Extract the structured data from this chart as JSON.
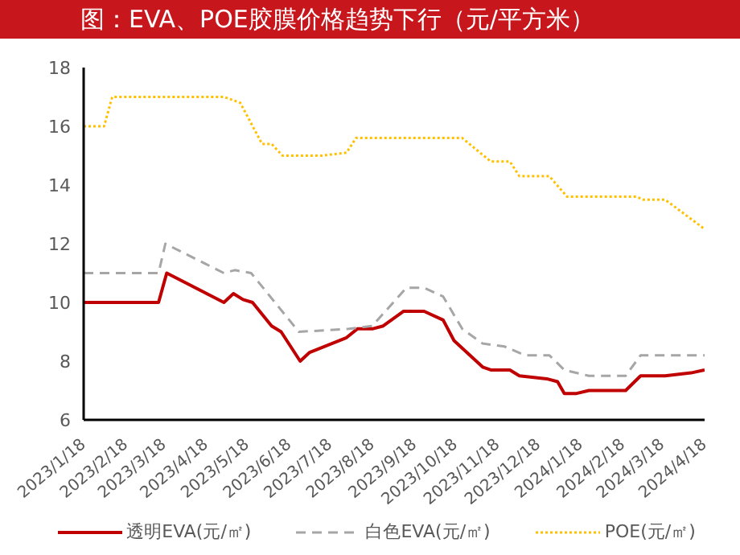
{
  "chart_data": {
    "type": "line",
    "title": "图：EVA、POE胶膜价格趋势下行（元/平方米）",
    "xlim": [
      "2023-01-18",
      "2024-04-18"
    ],
    "xticks": [
      {
        "value": "2023-01-18",
        "label": "2023/1/18"
      },
      {
        "value": "2023-02-18",
        "label": "2023/2/18"
      },
      {
        "value": "2023-03-18",
        "label": "2023/3/18"
      },
      {
        "value": "2023-04-18",
        "label": "2023/4/18"
      },
      {
        "value": "2023-05-18",
        "label": "2023/5/18"
      },
      {
        "value": "2023-06-18",
        "label": "2023/6/18"
      },
      {
        "value": "2023-07-18",
        "label": "2023/7/18"
      },
      {
        "value": "2023-08-18",
        "label": "2023/8/18"
      },
      {
        "value": "2023-09-18",
        "label": "2023/9/18"
      },
      {
        "value": "2023-10-18",
        "label": "2023/10/18"
      },
      {
        "value": "2023-11-18",
        "label": "2023/11/18"
      },
      {
        "value": "2023-12-18",
        "label": "2023/12/18"
      },
      {
        "value": "2024-01-18",
        "label": "2024/1/18"
      },
      {
        "value": "2024-02-18",
        "label": "2024/2/18"
      },
      {
        "value": "2024-03-18",
        "label": "2024/3/18"
      },
      {
        "value": "2024-04-18",
        "label": "2024/4/18"
      }
    ],
    "ylim": [
      6,
      18
    ],
    "yticks": [
      6,
      8,
      10,
      12,
      14,
      16,
      18
    ],
    "grid": false,
    "legend": "bottom",
    "marker": "none",
    "series": [
      {
        "name": "透明EVA(元/㎡)",
        "color": "#c00000",
        "line_style": "solid",
        "x": [
          "2023-01-18",
          "2023-03-14",
          "2023-03-20",
          "2023-05-01",
          "2023-05-08",
          "2023-05-15",
          "2023-05-22",
          "2023-06-05",
          "2023-06-12",
          "2023-06-26",
          "2023-07-03",
          "2023-07-30",
          "2023-08-07",
          "2023-08-18",
          "2023-08-26",
          "2023-09-10",
          "2023-09-25",
          "2023-10-09",
          "2023-10-17",
          "2023-11-07",
          "2023-11-13",
          "2023-11-27",
          "2023-12-04",
          "2023-12-24",
          "2024-01-01",
          "2024-01-06",
          "2024-01-15",
          "2024-01-24",
          "2024-02-20",
          "2024-03-02",
          "2024-03-20",
          "2024-04-08",
          "2024-04-18"
        ],
        "values": [
          10,
          10,
          11,
          10,
          10.3,
          10.1,
          10,
          9.2,
          9,
          8,
          8.3,
          8.8,
          9.1,
          9.1,
          9.2,
          9.7,
          9.7,
          9.4,
          8.7,
          7.8,
          7.7,
          7.7,
          7.5,
          7.4,
          7.3,
          6.9,
          6.9,
          7,
          7,
          7.5,
          7.5,
          7.6,
          7.7
        ]
      },
      {
        "name": "白色EVA(元/㎡)",
        "color": "#a6a6a6",
        "line_style": "dashed",
        "x": [
          "2023-01-18",
          "2023-03-14",
          "2023-03-19",
          "2023-05-01",
          "2023-05-09",
          "2023-05-21",
          "2023-06-25",
          "2023-08-01",
          "2023-08-18",
          "2023-09-12",
          "2023-09-25",
          "2023-10-09",
          "2023-10-23",
          "2023-11-07",
          "2023-11-23",
          "2023-12-08",
          "2023-12-26",
          "2024-01-06",
          "2024-01-24",
          "2024-02-20",
          "2024-03-02",
          "2024-04-18"
        ],
        "values": [
          11,
          11,
          12,
          11,
          11.1,
          11,
          9,
          9.1,
          9.2,
          10.5,
          10.5,
          10.2,
          9.1,
          8.6,
          8.5,
          8.2,
          8.2,
          7.7,
          7.5,
          7.5,
          8.2,
          8.2
        ]
      },
      {
        "name": "POE(元/㎡)",
        "color": "#ffc000",
        "line_style": "dotted",
        "x": [
          "2023-01-18",
          "2023-02-02",
          "2023-02-08",
          "2023-05-01",
          "2023-05-13",
          "2023-05-29",
          "2023-06-05",
          "2023-06-13",
          "2023-07-12",
          "2023-07-30",
          "2023-08-06",
          "2023-10-23",
          "2023-11-13",
          "2023-11-27",
          "2023-12-04",
          "2023-12-26",
          "2024-01-08",
          "2024-02-28",
          "2024-03-04",
          "2024-03-20",
          "2024-04-18"
        ],
        "values": [
          16,
          16,
          17,
          17,
          16.8,
          15.4,
          15.4,
          15,
          15,
          15.1,
          15.6,
          15.6,
          14.8,
          14.8,
          14.3,
          14.3,
          13.6,
          13.6,
          13.5,
          13.5,
          12.5
        ]
      }
    ]
  }
}
